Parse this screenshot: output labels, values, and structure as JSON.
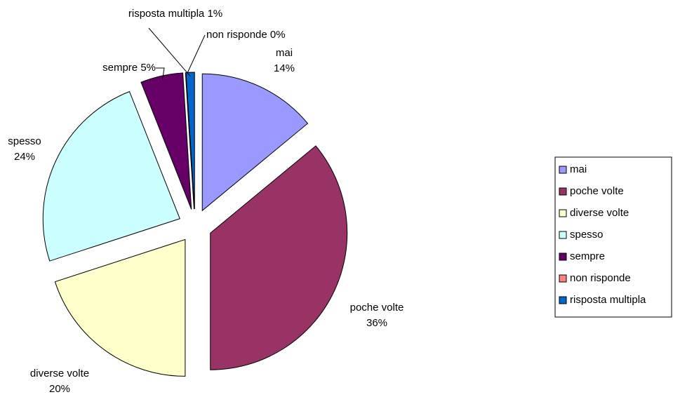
{
  "chart_data": {
    "type": "pie",
    "categories": [
      "mai",
      "poche volte",
      "diverse volte",
      "spesso",
      "sempre",
      "non risponde",
      "risposta multipla"
    ],
    "values": [
      14,
      36,
      20,
      24,
      5,
      0,
      1
    ],
    "value_labels": [
      "14%",
      "36%",
      "20%",
      "24%",
      "5%",
      "0%",
      "1%"
    ],
    "colors": [
      "#9999ff",
      "#993366",
      "#ffffcc",
      "#ccffff",
      "#660066",
      "#ff8080",
      "#0066cc"
    ],
    "exploded": true,
    "legend": "right"
  }
}
